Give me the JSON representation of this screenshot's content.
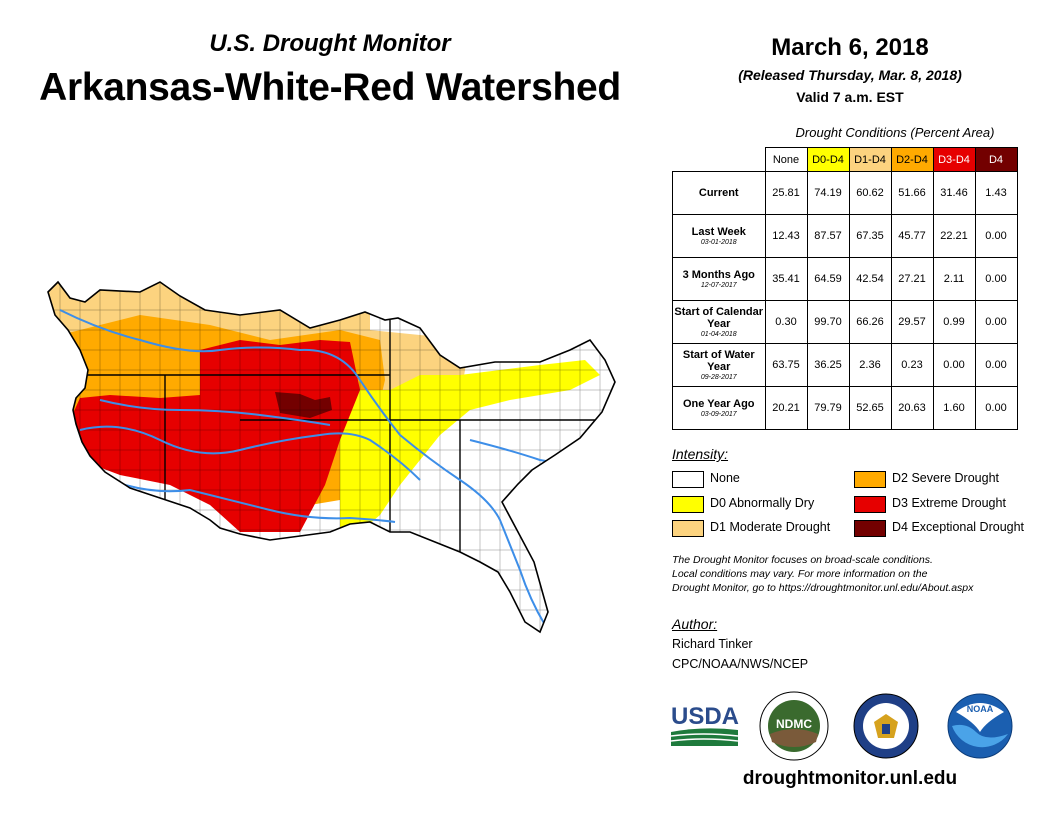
{
  "header": {
    "subtitle": "U.S. Drought Monitor",
    "title": "Arkansas-White-Red Watershed",
    "date": "March 6, 2018",
    "released": "(Released Thursday, Mar. 8, 2018)",
    "valid": "Valid 7 a.m. EST"
  },
  "table": {
    "caption": "Drought Conditions (Percent Area)",
    "columns": [
      "None",
      "D0-D4",
      "D1-D4",
      "D2-D4",
      "D3-D4",
      "D4"
    ],
    "rows": [
      {
        "label": "Current",
        "date": "",
        "values": [
          "25.81",
          "74.19",
          "60.62",
          "51.66",
          "31.46",
          "1.43"
        ]
      },
      {
        "label": "Last Week",
        "date": "03-01-2018",
        "values": [
          "12.43",
          "87.57",
          "67.35",
          "45.77",
          "22.21",
          "0.00"
        ]
      },
      {
        "label": "3 Months Ago",
        "date": "12-07-2017",
        "values": [
          "35.41",
          "64.59",
          "42.54",
          "27.21",
          "2.11",
          "0.00"
        ]
      },
      {
        "label": "Start of Calendar Year",
        "date": "01-04-2018",
        "values": [
          "0.30",
          "99.70",
          "66.26",
          "29.57",
          "0.99",
          "0.00"
        ]
      },
      {
        "label": "Start of Water Year",
        "date": "09-28-2017",
        "values": [
          "63.75",
          "36.25",
          "2.36",
          "0.23",
          "0.00",
          "0.00"
        ]
      },
      {
        "label": "One Year Ago",
        "date": "03-09-2017",
        "values": [
          "20.21",
          "79.79",
          "52.65",
          "20.63",
          "1.60",
          "0.00"
        ]
      }
    ]
  },
  "legend": {
    "title": "Intensity:",
    "items": [
      {
        "label": "None",
        "color": "#ffffff"
      },
      {
        "label": "D0 Abnormally Dry",
        "color": "#ffff00"
      },
      {
        "label": "D1 Moderate Drought",
        "color": "#fcd37f"
      },
      {
        "label": "D2 Severe Drought",
        "color": "#ffaa00"
      },
      {
        "label": "D3 Extreme Drought",
        "color": "#e60000"
      },
      {
        "label": "D4 Exceptional Drought",
        "color": "#730000"
      }
    ]
  },
  "disclaimer": {
    "line1": "The Drought Monitor focuses on broad-scale conditions.",
    "line2": "Local conditions may vary. For more information on the",
    "line3": "Drought Monitor, go to https://droughtmonitor.unl.edu/About.aspx"
  },
  "author": {
    "title": "Author:",
    "name": "Richard Tinker",
    "org": "CPC/NOAA/NWS/NCEP"
  },
  "logos": {
    "usda": "USDA",
    "ndmc": "NDMC",
    "noaa": "NOAA"
  },
  "website": "droughtmonitor.unl.edu",
  "colors": {
    "d0": "#ffff00",
    "d1": "#fcd37f",
    "d2": "#ffaa00",
    "d3": "#e60000",
    "d4": "#730000",
    "river": "#3d8ee8"
  }
}
